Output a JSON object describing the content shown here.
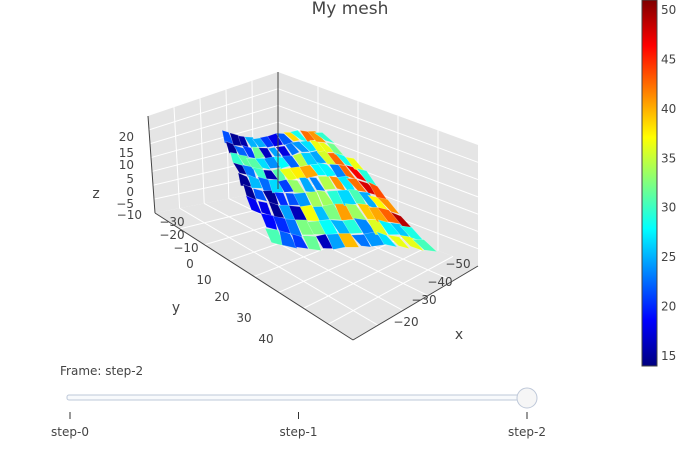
{
  "chart_data": {
    "type": "mesh3d",
    "title": "My mesh",
    "scene": {
      "x_axis": {
        "title": "x",
        "ticks": [
          "−50",
          "−40",
          "−30",
          "−20"
        ]
      },
      "y_axis": {
        "title": "y",
        "ticks": [
          "−30",
          "−20",
          "−10",
          "0",
          "10",
          "20",
          "30",
          "40"
        ]
      },
      "z_axis": {
        "title": "z",
        "ticks": [
          "20",
          "15",
          "10",
          "5",
          "0",
          "−5",
          "−10"
        ]
      },
      "background": "#e5e5e5",
      "grid": true
    },
    "colorbar": {
      "colorscale": "Jet",
      "range": [
        14,
        51
      ],
      "ticks": [
        15,
        20,
        25,
        30,
        35,
        40,
        45,
        50
      ]
    }
  },
  "slider": {
    "current_label": "Frame: step-2",
    "steps": [
      "step-0",
      "step-1",
      "step-2"
    ],
    "active_index": 2
  }
}
